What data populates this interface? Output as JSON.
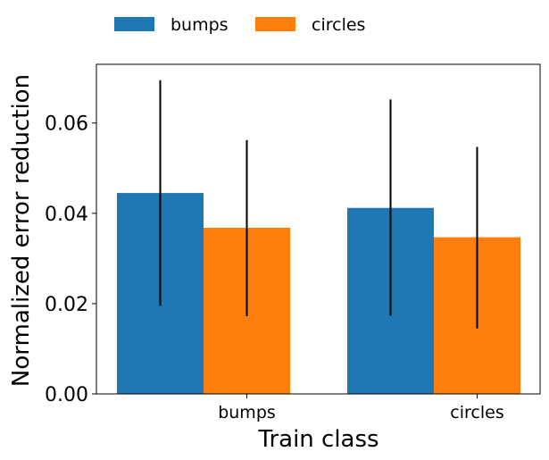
{
  "chart_data": {
    "type": "bar",
    "title": "",
    "xlabel": "Train class",
    "ylabel": "Normalized error reduction",
    "categories": [
      "bumps",
      "circles"
    ],
    "series": [
      {
        "name": "bumps",
        "color": "#1f77b4",
        "values": [
          0.0445,
          0.0412
        ],
        "err_low": [
          0.0195,
          0.0173
        ],
        "err_high": [
          0.0695,
          0.0652
        ]
      },
      {
        "name": "circles",
        "color": "#ff7f0e",
        "values": [
          0.0368,
          0.0347
        ],
        "err_low": [
          0.0172,
          0.0145
        ],
        "err_high": [
          0.0562,
          0.0547
        ]
      }
    ],
    "ylim": [
      0,
      0.073
    ],
    "yticks": [
      0.0,
      0.02,
      0.04,
      0.06
    ],
    "ytick_labels": [
      "0.00",
      "0.02",
      "0.04",
      "0.06"
    ],
    "legend": {
      "position": "top-left",
      "entries": [
        "bumps",
        "circles"
      ]
    },
    "grid": false
  }
}
